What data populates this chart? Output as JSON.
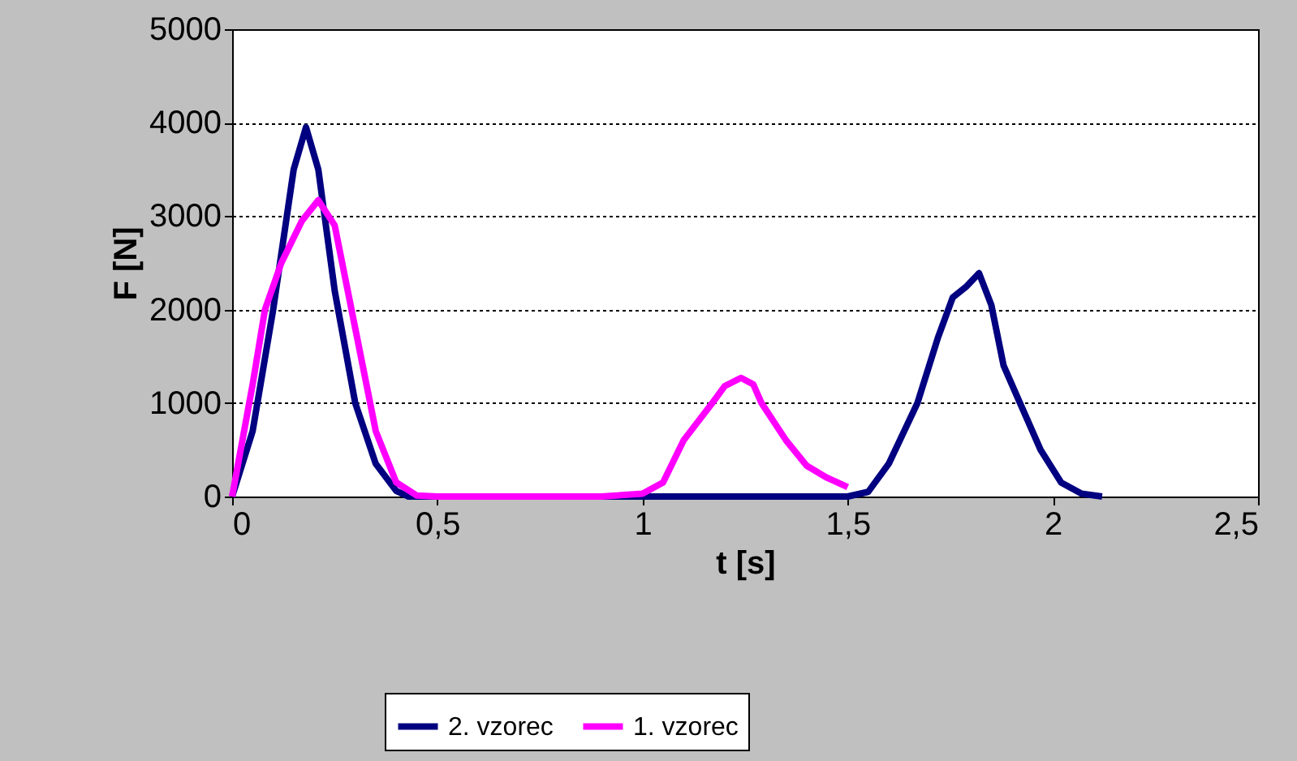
{
  "chart_data": {
    "type": "line",
    "xlabel": "t [s]",
    "ylabel": "F [N]",
    "xlim": [
      0,
      2.5
    ],
    "xticks": [
      0,
      {
        "value": 0.5,
        "label": "0,5"
      },
      1,
      {
        "value": 1.5,
        "label": "1,5"
      },
      2,
      {
        "value": 2.5,
        "label": "2,5"
      }
    ],
    "ylim": [
      0,
      5000
    ],
    "yticks": [
      0,
      1000,
      2000,
      3000,
      4000,
      5000
    ],
    "grid": "y",
    "legend": "bottom",
    "marker": "none",
    "line_style": "solid",
    "series": [
      {
        "name": "2. vzorec",
        "color": "#000080",
        "x": [
          0,
          0.05,
          0.1,
          0.15,
          0.18,
          0.21,
          0.25,
          0.3,
          0.35,
          0.4,
          0.43,
          0.6,
          0.8,
          1.0,
          1.2,
          1.4,
          1.5,
          1.55,
          1.6,
          1.67,
          1.72,
          1.756,
          1.79,
          1.82,
          1.85,
          1.88,
          1.92,
          1.97,
          2.02,
          2.07,
          2.12
        ],
        "values": [
          0,
          700,
          2000,
          3500,
          3950,
          3500,
          2200,
          1000,
          350,
          60,
          0,
          0,
          0,
          0,
          0,
          0,
          0,
          50,
          350,
          1000,
          1700,
          2130,
          2250,
          2390,
          2050,
          1400,
          1000,
          500,
          150,
          30,
          0
        ]
      },
      {
        "name": "1. vzorec",
        "color": "#ff00ff",
        "x": [
          0,
          0.05,
          0.08,
          0.12,
          0.17,
          0.21,
          0.25,
          0.3,
          0.35,
          0.4,
          0.45,
          0.5,
          0.7,
          0.9,
          1.0,
          1.05,
          1.1,
          1.17,
          1.2,
          1.24,
          1.27,
          1.29,
          1.35,
          1.4,
          1.45,
          1.5
        ],
        "values": [
          0,
          1200,
          2000,
          2500,
          2950,
          3170,
          2900,
          1800,
          700,
          150,
          10,
          0,
          0,
          0,
          30,
          150,
          600,
          1000,
          1180,
          1270,
          1200,
          1000,
          600,
          330,
          200,
          100
        ]
      }
    ]
  }
}
